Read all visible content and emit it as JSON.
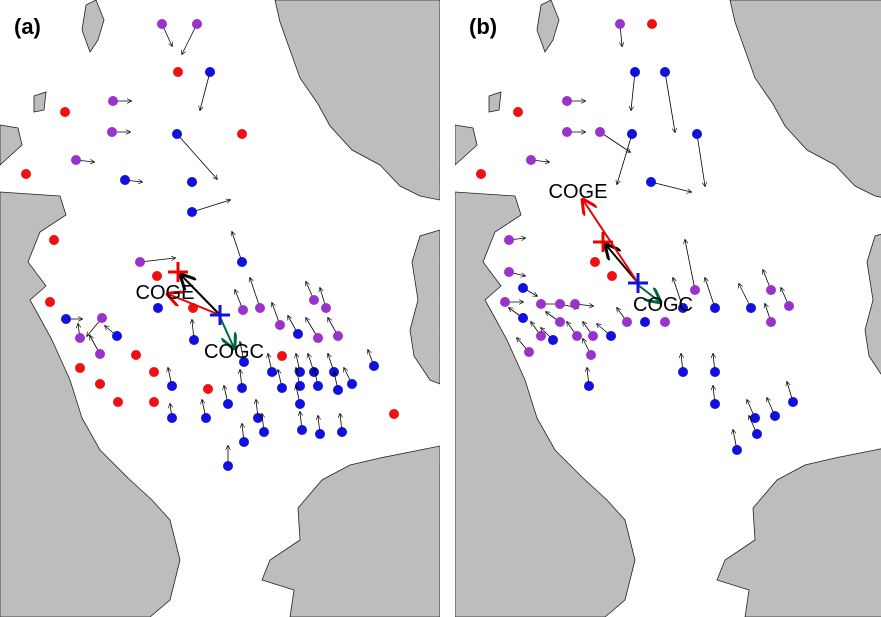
{
  "panels": [
    {
      "label": "(a)",
      "annotations": {
        "coge": "COGE",
        "cogc": "COGC"
      }
    },
    {
      "label": "(b)",
      "annotations": {
        "coge": "COGE",
        "cogc": "COGC"
      }
    }
  ]
}
